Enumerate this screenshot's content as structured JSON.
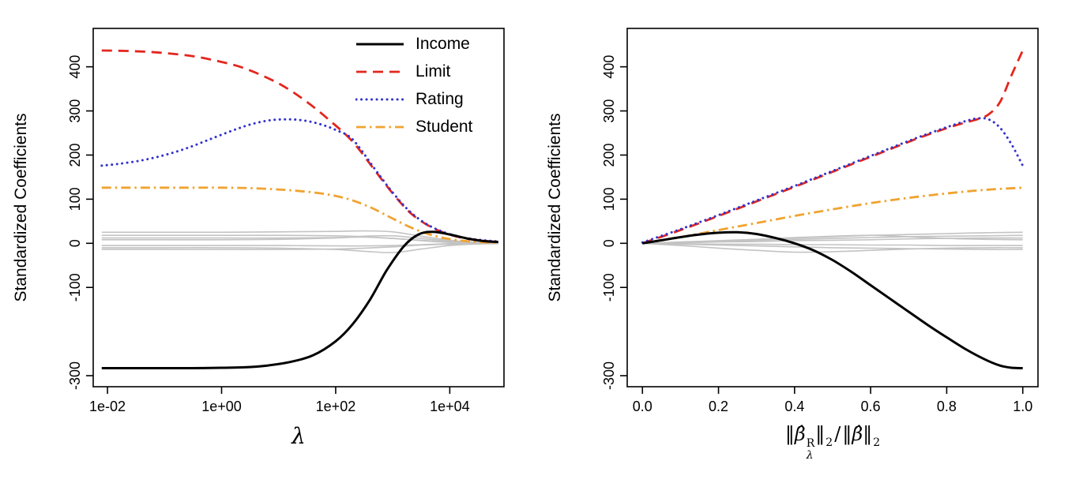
{
  "figure": {
    "background": "#ffffff",
    "description": "Ridge regression standardized coefficient paths"
  },
  "legend": {
    "items": [
      {
        "key": "income",
        "label": "Income"
      },
      {
        "key": "limit",
        "label": "Limit"
      },
      {
        "key": "rating",
        "label": "Rating"
      },
      {
        "key": "student",
        "label": "Student"
      }
    ]
  },
  "chart_data": [
    {
      "type": "line",
      "ylabel": "Standardized Coefficients",
      "xlabel": "λ",
      "x_axis": {
        "scale": "log10",
        "unit": "lambda",
        "lim": [
          -2.25,
          4.95
        ],
        "ticks": [
          {
            "v": -2,
            "label": "1e-02"
          },
          {
            "v": 0,
            "label": "1e+00"
          },
          {
            "v": 2,
            "label": "1e+02"
          },
          {
            "v": 4,
            "label": "1e+04"
          }
        ]
      },
      "y_axis": {
        "lim": [
          -325,
          487
        ],
        "ticks": [
          {
            "v": -300,
            "label": "-300"
          },
          {
            "v": -100,
            "label": "-100"
          },
          {
            "v": 0,
            "label": "0"
          },
          {
            "v": 100,
            "label": "100"
          },
          {
            "v": 200,
            "label": "200"
          },
          {
            "v": 300,
            "label": "300"
          },
          {
            "v": 400,
            "label": "400"
          }
        ]
      },
      "series": [
        {
          "key": "other-1",
          "label": "",
          "color": "#c3c3c3",
          "width": 1.6,
          "dash": "",
          "cap": "butt",
          "x": [
            -2.1,
            -1,
            0,
            1,
            2,
            2.5,
            3,
            3.5,
            4,
            4.4,
            4.85
          ],
          "y": [
            25,
            25,
            25,
            26,
            27,
            28,
            26,
            16,
            7,
            3,
            1
          ]
        },
        {
          "key": "other-2",
          "label": "",
          "color": "#c3c3c3",
          "width": 1.6,
          "dash": "",
          "cap": "butt",
          "x": [
            -2.1,
            -1,
            0,
            1,
            2,
            2.5,
            3,
            3.5,
            4,
            4.4,
            4.85
          ],
          "y": [
            12,
            12,
            12,
            12,
            13,
            14,
            11,
            7,
            3,
            1,
            0.5
          ]
        },
        {
          "key": "other-3",
          "label": "",
          "color": "#c3c3c3",
          "width": 1.6,
          "dash": "",
          "cap": "butt",
          "x": [
            -2.1,
            -1,
            0,
            1,
            2,
            2.5,
            3,
            3.5,
            4,
            4.4,
            4.85
          ],
          "y": [
            8,
            8,
            8,
            9,
            12,
            16,
            17,
            11,
            5,
            2,
            1
          ]
        },
        {
          "key": "other-4",
          "label": "",
          "color": "#c3c3c3",
          "width": 1.6,
          "dash": "",
          "cap": "butt",
          "x": [
            -2.1,
            -1,
            0,
            1,
            2,
            2.5,
            3,
            3.5,
            4,
            4.4,
            4.85
          ],
          "y": [
            -5,
            -5,
            -5,
            -5,
            -6,
            -6,
            -5,
            -3,
            -1,
            -0.5,
            0
          ]
        },
        {
          "key": "other-5",
          "label": "",
          "color": "#c3c3c3",
          "width": 1.6,
          "dash": "",
          "cap": "butt",
          "x": [
            -2.1,
            -1,
            0,
            1,
            2,
            2.5,
            3,
            3.5,
            4,
            4.4,
            4.85
          ],
          "y": [
            -10,
            -10,
            -10,
            -11,
            -14,
            -18,
            -21,
            -13,
            -5,
            -2,
            -1
          ]
        },
        {
          "key": "other-6",
          "label": "",
          "color": "#c3c3c3",
          "width": 1.6,
          "dash": "",
          "cap": "butt",
          "x": [
            -2.1,
            -1,
            0,
            1,
            2,
            2.5,
            3,
            3.5,
            4,
            4.4,
            4.85
          ],
          "y": [
            -14,
            -14,
            -14,
            -14,
            -13,
            -11,
            -8,
            -4,
            -2,
            -1,
            0
          ]
        },
        {
          "key": "other-7",
          "label": "",
          "color": "#c3c3c3",
          "width": 1.6,
          "dash": "",
          "cap": "butt",
          "x": [
            -2.1,
            -1,
            0,
            1,
            2,
            2.5,
            3,
            3.5,
            4,
            4.4,
            4.85
          ],
          "y": [
            18,
            18,
            18,
            18,
            17,
            15,
            11,
            6,
            2,
            1,
            0.5
          ]
        },
        {
          "key": "student",
          "label": "Student",
          "color": "#f0a330",
          "width": 2.8,
          "dash": "12,5,2.5,5",
          "cap": "butt",
          "x": [
            -2.1,
            -1.5,
            -1,
            -0.5,
            0,
            0.5,
            1,
            1.4,
            1.8,
            2.2,
            2.6,
            3,
            3.3,
            3.6,
            3.9,
            4.2,
            4.5,
            4.85
          ],
          "y": [
            126,
            126,
            126,
            126,
            126,
            125,
            122,
            118,
            112,
            101,
            82,
            56,
            37,
            22,
            12,
            6,
            3,
            1
          ]
        },
        {
          "key": "limit",
          "label": "Limit",
          "color": "#e3261e",
          "width": 2.8,
          "dash": "13,8",
          "cap": "butt",
          "x": [
            -2.1,
            -1.7,
            -1.3,
            -0.9,
            -0.5,
            -0.1,
            0.3,
            0.7,
            1.1,
            1.5,
            1.9,
            2.3,
            2.7,
            3,
            3.3,
            3.6,
            3.9,
            4.2,
            4.5,
            4.85
          ],
          "y": [
            437,
            436,
            434,
            430,
            424,
            414,
            401,
            381,
            355,
            320,
            278,
            230,
            163,
            113,
            70,
            42,
            24,
            13,
            7,
            3
          ]
        },
        {
          "key": "rating",
          "label": "Rating",
          "color": "#3333cc",
          "width": 3,
          "dash": "0.1,6.4",
          "cap": "round",
          "x": [
            -2.1,
            -1.8,
            -1.4,
            -1,
            -0.6,
            -0.2,
            0.2,
            0.5,
            0.8,
            1.1,
            1.4,
            1.7,
            2,
            2.3,
            2.7,
            3,
            3.3,
            3.6,
            3.9,
            4.2,
            4.5,
            4.85
          ],
          "y": [
            176,
            180,
            188,
            200,
            216,
            236,
            256,
            269,
            278,
            281,
            279,
            271,
            257,
            235,
            166,
            115,
            72,
            43,
            25,
            14,
            8,
            4
          ]
        },
        {
          "key": "income",
          "label": "Income",
          "color": "#000000",
          "width": 3,
          "dash": "",
          "cap": "butt",
          "x": [
            -2.1,
            -1.5,
            -1,
            -0.5,
            0,
            0.4,
            0.8,
            1.2,
            1.6,
            2,
            2.3,
            2.6,
            2.9,
            3.2,
            3.45,
            3.7,
            4,
            4.3,
            4.6,
            4.85
          ],
          "y": [
            -283,
            -283,
            -283,
            -283,
            -282,
            -281,
            -277,
            -269,
            -254,
            -222,
            -183,
            -128,
            -60,
            -6,
            20,
            26,
            20,
            11,
            5,
            3
          ]
        }
      ]
    },
    {
      "type": "line",
      "ylabel": "Standardized Coefficients",
      "xlabel_text": "‖β̂_λ^R‖₂ / ‖β̂‖₂",
      "xlabel_parts": {
        "norm_open_1": "‖",
        "beta_hat_1": "β̂",
        "sup_R": "R",
        "sub_lambda": "λ",
        "norm_close_1": "‖",
        "sub_2_first": "2",
        "slash": "/",
        "norm_open_2": "‖",
        "beta_hat_2": "β̂",
        "norm_close_2": "‖",
        "sub_2_second": "2"
      },
      "x_axis": {
        "scale": "linear",
        "unit": "l2-norm-ratio",
        "lim": [
          -0.04,
          1.04
        ],
        "ticks": [
          {
            "v": 0,
            "label": "0.0"
          },
          {
            "v": 0.2,
            "label": "0.2"
          },
          {
            "v": 0.4,
            "label": "0.4"
          },
          {
            "v": 0.6,
            "label": "0.6"
          },
          {
            "v": 0.8,
            "label": "0.8"
          },
          {
            "v": 1,
            "label": "1.0"
          }
        ]
      },
      "y_axis": {
        "lim": [
          -325,
          487
        ],
        "ticks": [
          {
            "v": -300,
            "label": "-300"
          },
          {
            "v": -100,
            "label": "-100"
          },
          {
            "v": 0,
            "label": "0"
          },
          {
            "v": 100,
            "label": "100"
          },
          {
            "v": 200,
            "label": "200"
          },
          {
            "v": 300,
            "label": "300"
          },
          {
            "v": 400,
            "label": "400"
          }
        ]
      },
      "series": [
        {
          "key": "other-1",
          "label": "",
          "color": "#c3c3c3",
          "width": 1.6,
          "dash": "",
          "cap": "butt",
          "x": [
            0,
            0.1,
            0.2,
            0.3,
            0.4,
            0.5,
            0.6,
            0.7,
            0.8,
            0.9,
            1
          ],
          "y": [
            0,
            3,
            6,
            9,
            12,
            15,
            18,
            20,
            22,
            24,
            25
          ]
        },
        {
          "key": "other-2",
          "label": "",
          "color": "#c3c3c3",
          "width": 1.6,
          "dash": "",
          "cap": "butt",
          "x": [
            0,
            0.1,
            0.2,
            0.3,
            0.4,
            0.5,
            0.6,
            0.7,
            0.8,
            0.9,
            1
          ],
          "y": [
            0,
            1,
            3,
            4,
            6,
            7,
            8,
            10,
            11,
            12,
            12
          ]
        },
        {
          "key": "other-3",
          "label": "",
          "color": "#c3c3c3",
          "width": 1.6,
          "dash": "",
          "cap": "butt",
          "x": [
            0,
            0.1,
            0.2,
            0.3,
            0.4,
            0.5,
            0.6,
            0.7,
            0.8,
            0.9,
            1
          ],
          "y": [
            0,
            2,
            5,
            9,
            13,
            16,
            18,
            15,
            11,
            9,
            8
          ]
        },
        {
          "key": "other-4",
          "label": "",
          "color": "#c3c3c3",
          "width": 1.6,
          "dash": "",
          "cap": "butt",
          "x": [
            0,
            0.1,
            0.2,
            0.3,
            0.4,
            0.5,
            0.6,
            0.7,
            0.8,
            0.9,
            1
          ],
          "y": [
            0,
            -1,
            -2,
            -2,
            -3,
            -3,
            -4,
            -4,
            -5,
            -5,
            -5
          ]
        },
        {
          "key": "other-5",
          "label": "",
          "color": "#c3c3c3",
          "width": 1.6,
          "dash": "",
          "cap": "butt",
          "x": [
            0,
            0.1,
            0.2,
            0.3,
            0.4,
            0.5,
            0.6,
            0.7,
            0.8,
            0.9,
            1
          ],
          "y": [
            0,
            -5,
            -11,
            -16,
            -20,
            -19,
            -16,
            -13,
            -11,
            -10,
            -10
          ]
        },
        {
          "key": "other-6",
          "label": "",
          "color": "#c3c3c3",
          "width": 1.6,
          "dash": "",
          "cap": "butt",
          "x": [
            0,
            0.1,
            0.2,
            0.3,
            0.4,
            0.5,
            0.6,
            0.7,
            0.8,
            0.9,
            1
          ],
          "y": [
            0,
            -2,
            -4,
            -6,
            -8,
            -10,
            -11,
            -12,
            -13,
            -14,
            -14
          ]
        },
        {
          "key": "other-7",
          "label": "",
          "color": "#c3c3c3",
          "width": 1.6,
          "dash": "",
          "cap": "butt",
          "x": [
            0,
            0.1,
            0.2,
            0.3,
            0.4,
            0.5,
            0.6,
            0.7,
            0.8,
            0.9,
            1
          ],
          "y": [
            0,
            2,
            4,
            7,
            9,
            11,
            13,
            15,
            16,
            17,
            18
          ]
        },
        {
          "key": "student",
          "label": "Student",
          "color": "#f0a330",
          "width": 2.8,
          "dash": "12,5,2.5,5",
          "cap": "butt",
          "x": [
            0,
            0.1,
            0.2,
            0.3,
            0.4,
            0.5,
            0.6,
            0.7,
            0.8,
            0.9,
            1
          ],
          "y": [
            0,
            14,
            30,
            46,
            62,
            77,
            91,
            103,
            113,
            121,
            126
          ]
        },
        {
          "key": "limit",
          "label": "Limit",
          "color": "#e3261e",
          "width": 2.8,
          "dash": "13,8",
          "cap": "butt",
          "x": [
            0,
            0.1,
            0.2,
            0.3,
            0.4,
            0.5,
            0.6,
            0.7,
            0.75,
            0.8,
            0.85,
            0.88,
            0.91,
            0.94,
            0.97,
            1
          ],
          "y": [
            0,
            30,
            62,
            95,
            128,
            162,
            196,
            230,
            246,
            261,
            274,
            281,
            292,
            320,
            380,
            437
          ]
        },
        {
          "key": "rating",
          "label": "Rating",
          "color": "#3333cc",
          "width": 3,
          "dash": "0.1,6.4",
          "cap": "round",
          "x": [
            0,
            0.1,
            0.2,
            0.3,
            0.4,
            0.5,
            0.6,
            0.7,
            0.75,
            0.8,
            0.85,
            0.88,
            0.91,
            0.94,
            0.97,
            1
          ],
          "y": [
            2,
            32,
            64,
            97,
            130,
            164,
            198,
            232,
            248,
            263,
            277,
            283,
            281,
            262,
            225,
            176
          ]
        },
        {
          "key": "income",
          "label": "Income",
          "color": "#000000",
          "width": 3,
          "dash": "",
          "cap": "butt",
          "x": [
            0,
            0.05,
            0.1,
            0.15,
            0.2,
            0.25,
            0.3,
            0.35,
            0.4,
            0.45,
            0.5,
            0.55,
            0.6,
            0.65,
            0.7,
            0.75,
            0.8,
            0.85,
            0.9,
            0.94,
            0.97,
            1
          ],
          "y": [
            0,
            7,
            14,
            20,
            24,
            25,
            21,
            12,
            0,
            -16,
            -38,
            -65,
            -95,
            -125,
            -155,
            -185,
            -213,
            -240,
            -263,
            -277,
            -282,
            -283
          ]
        }
      ]
    }
  ]
}
